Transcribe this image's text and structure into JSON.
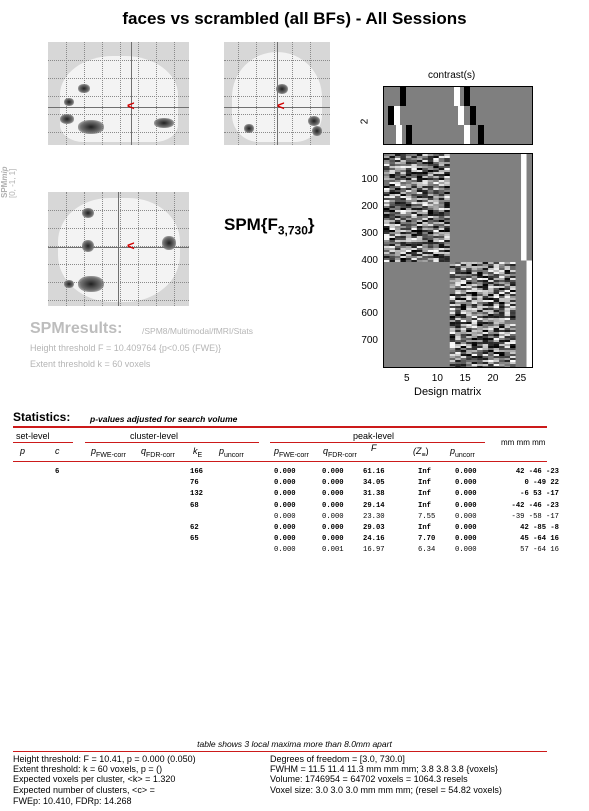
{
  "title": "faces vs scrambled (all BFs) - All Sessions",
  "mip": {
    "side_label": "SPM",
    "side_label_suffix": "mip",
    "coords": "[0, -1, 1]",
    "cursor_glyph": "<"
  },
  "spm_stat": {
    "main": "SPM{F",
    "subscript": "3,730",
    "close": "}"
  },
  "results": {
    "title": "SPMresults:",
    "path": "/SPM8/Multimodal/fMRI/Stats",
    "height_threshold": "Height threshold F = 10.409764  {p<0.05 (FWE)}",
    "extent_threshold": "Extent threshold k = 60 voxels"
  },
  "design": {
    "contrast_label": "contrast(s)",
    "contrast_index": "2",
    "y_ticks": [
      "100",
      "200",
      "300",
      "400",
      "500",
      "600",
      "700"
    ],
    "x_ticks": [
      "5",
      "10",
      "15",
      "20",
      "25"
    ],
    "xlabel": "Design matrix"
  },
  "statistics": {
    "title": "Statistics:",
    "subtitle": "p-values adjusted for search volume",
    "groups": {
      "set": "set-level",
      "cluster": "cluster-level",
      "peak": "peak-level",
      "coords": "mm mm mm"
    },
    "headers": {
      "set_p": "p",
      "set_c": "c",
      "cl_pfwe": "p",
      "cl_pfwe_sub": "FWE-corr",
      "cl_qfdr": "q",
      "cl_qfdr_sub": "FDR-corr",
      "cl_k": "k",
      "cl_k_sub": "E",
      "cl_punc": "p",
      "cl_punc_sub": "uncorr",
      "pk_pfwe": "p",
      "pk_pfwe_sub": "FWE-corr",
      "pk_qfdr": "q",
      "pk_qfdr_sub": "FDR-corr",
      "pk_f": "F",
      "pk_z": "(Z",
      "pk_z_sub": "≡",
      "pk_z_close": ")",
      "pk_punc": "p",
      "pk_punc_sub": "uncorr"
    },
    "rows": [
      {
        "c": "6",
        "k": "166",
        "pfwe": "0.000",
        "qfdr": "0.000",
        "f": "61.16",
        "z": "Inf",
        "punc": "0.000",
        "xyz": "42 -46 -23",
        "bold": true
      },
      {
        "c": "",
        "k": "76",
        "pfwe": "0.000",
        "qfdr": "0.000",
        "f": "34.05",
        "z": "Inf",
        "punc": "0.000",
        "xyz": "0 -49 22",
        "bold": true
      },
      {
        "c": "",
        "k": "132",
        "pfwe": "0.000",
        "qfdr": "0.000",
        "f": "31.38",
        "z": "Inf",
        "punc": "0.000",
        "xyz": "-6 53 -17",
        "bold": true
      },
      {
        "c": "",
        "k": "68",
        "pfwe": "0.000",
        "qfdr": "0.000",
        "f": "29.14",
        "z": "Inf",
        "punc": "0.000",
        "xyz": "-42 -46 -23",
        "bold": true
      },
      {
        "c": "",
        "k": "",
        "pfwe": "0.000",
        "qfdr": "0.000",
        "f": "23.30",
        "z": "7.55",
        "punc": "0.000",
        "xyz": "-39 -58 -17",
        "bold": false
      },
      {
        "c": "",
        "k": "62",
        "pfwe": "0.000",
        "qfdr": "0.000",
        "f": "29.03",
        "z": "Inf",
        "punc": "0.000",
        "xyz": "42 -85 -8",
        "bold": true
      },
      {
        "c": "",
        "k": "65",
        "pfwe": "0.000",
        "qfdr": "0.000",
        "f": "24.16",
        "z": "7.70",
        "punc": "0.000",
        "xyz": "45 -64 16",
        "bold": true
      },
      {
        "c": "",
        "k": "",
        "pfwe": "0.000",
        "qfdr": "0.001",
        "f": "16.97",
        "z": "6.34",
        "punc": "0.000",
        "xyz": "57 -64 16",
        "bold": false
      }
    ]
  },
  "footer": {
    "note": "table shows 3 local maxima more than 8.0mm apart",
    "left": [
      "Height threshold: F = 10.41, p = 0.000 (0.050)",
      "Extent threshold: k = 60 voxels, p =  ()",
      "Expected voxels per cluster, <k> = 1.320",
      "Expected number of clusters, <c> =",
      "FWEp: 10.410, FDRp: 14.268"
    ],
    "right": [
      "Degrees of freedom = [3.0, 730.0]",
      "FWHM = 11.5 11.4 11.3 mm mm mm; 3.8 3.8 3.8 {voxels}",
      "Volume: 1746954 = 64702 voxels = 1064.3 resels",
      "Voxel size: 3.0 3.0 3.0 mm mm mm; (resel = 54.82 voxels)"
    ]
  },
  "colors": {
    "accent_red": "#cc1a1a",
    "cursor_red": "#d10000",
    "faded_text": "#b5b5b5"
  }
}
